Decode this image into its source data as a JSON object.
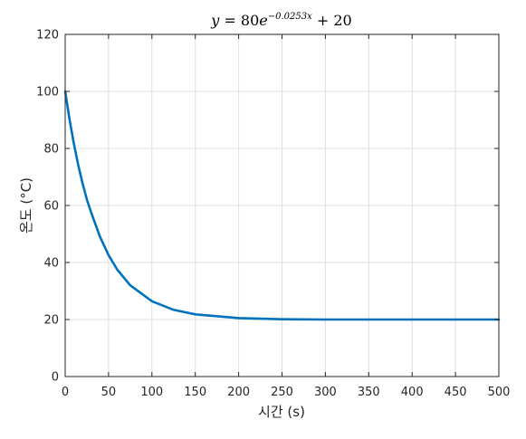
{
  "chart_data": {
    "type": "line",
    "title": {
      "lhs": "y",
      "eq": " = ",
      "coef": "80",
      "base": "e",
      "exponent": "−0.0253x",
      "plus": " + ",
      "const": "20"
    },
    "xlabel": "시간 (s)",
    "ylabel": "온도 (°C)",
    "xlim": [
      0,
      500
    ],
    "ylim": [
      0,
      120
    ],
    "xticks": [
      0,
      50,
      100,
      150,
      200,
      250,
      300,
      350,
      400,
      450,
      500
    ],
    "yticks": [
      0,
      20,
      40,
      60,
      80,
      100,
      120
    ],
    "grid": true,
    "series": [
      {
        "x": [
          0,
          5,
          10,
          15,
          20,
          25,
          30,
          40,
          50,
          60,
          75,
          100,
          125,
          150,
          200,
          250,
          300,
          350,
          400,
          450,
          500
        ],
        "y": [
          100.0,
          90.2,
          81.7,
          74.2,
          67.8,
          62.1,
          57.5,
          49.1,
          42.6,
          37.5,
          32.0,
          26.4,
          23.4,
          21.8,
          20.5,
          20.1,
          20.0,
          20.0,
          20.0,
          20.0,
          20.0
        ],
        "color": "#0072BD"
      }
    ],
    "colors": {
      "line": "#0072BD",
      "grid": "#dfdfdf",
      "axis": "#262626"
    }
  }
}
